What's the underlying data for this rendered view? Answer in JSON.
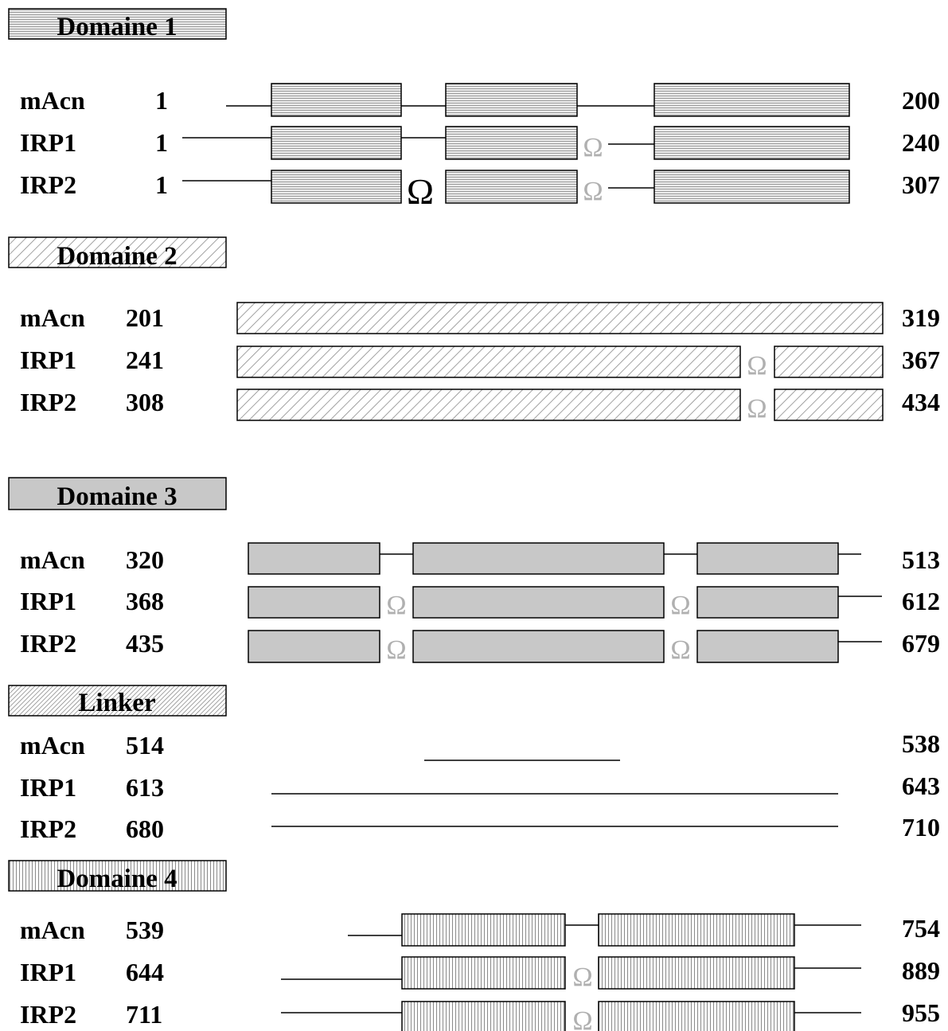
{
  "sections": [
    {
      "title": "Domaine 1",
      "pattern": "horizontal-lines",
      "fill": "#e4e4e4",
      "rows": [
        {
          "protein": "mAcn",
          "start": "1",
          "end": "200"
        },
        {
          "protein": "IRP1",
          "start": "1",
          "end": "240"
        },
        {
          "protein": "IRP2",
          "start": "1",
          "end": "307"
        }
      ]
    },
    {
      "title": "Domaine 2",
      "pattern": "diagonal-lines",
      "fill": "#ffffff",
      "rows": [
        {
          "protein": "mAcn",
          "start": "201",
          "end": "319"
        },
        {
          "protein": "IRP1",
          "start": "241",
          "end": "367"
        },
        {
          "protein": "IRP2",
          "start": "308",
          "end": "434"
        }
      ]
    },
    {
      "title": "Domaine 3",
      "pattern": "solid",
      "fill": "#c8c8c8",
      "rows": [
        {
          "protein": "mAcn",
          "start": "320",
          "end": "513"
        },
        {
          "protein": "IRP1",
          "start": "368",
          "end": "612"
        },
        {
          "protein": "IRP2",
          "start": "435",
          "end": "679"
        }
      ]
    },
    {
      "title": "Linker",
      "pattern": "dense-diagonal-lines",
      "fill": "#ffffff",
      "rows": [
        {
          "protein": "mAcn",
          "start": "514",
          "end": "538"
        },
        {
          "protein": "IRP1",
          "start": "613",
          "end": "643"
        },
        {
          "protein": "IRP2",
          "start": "680",
          "end": "710"
        }
      ]
    },
    {
      "title": "Domaine 4",
      "pattern": "vertical-lines",
      "fill": "#ffffff",
      "rows": [
        {
          "protein": "mAcn",
          "start": "539",
          "end": "754"
        },
        {
          "protein": "IRP1",
          "start": "644",
          "end": "889"
        },
        {
          "protein": "IRP2",
          "start": "711",
          "end": "955"
        }
      ]
    }
  ],
  "omega_symbol": "Ω",
  "colors": {
    "outline": "#000000",
    "omega_black": "#000000",
    "omega_grey": "#b0b0b0"
  }
}
